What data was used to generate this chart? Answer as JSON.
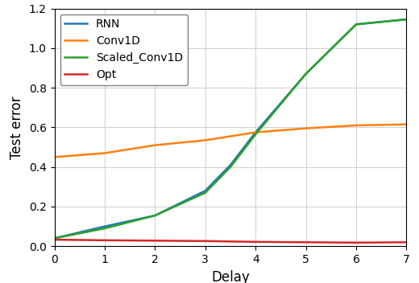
{
  "x": [
    0,
    1,
    2,
    3,
    3.5,
    4,
    5,
    6,
    7
  ],
  "RNN": [
    0.04,
    0.1,
    0.155,
    0.28,
    0.41,
    0.575,
    0.87,
    1.12,
    1.145
  ],
  "Conv1D": [
    0.45,
    0.47,
    0.51,
    0.535,
    0.555,
    0.575,
    0.595,
    0.61,
    0.615
  ],
  "Scaled_Conv1D": [
    0.04,
    0.09,
    0.155,
    0.27,
    0.4,
    0.565,
    0.87,
    1.12,
    1.145
  ],
  "Opt": [
    0.033,
    0.03,
    0.028,
    0.026,
    0.024,
    0.022,
    0.02,
    0.018,
    0.02
  ],
  "colors": {
    "RNN": "#1f77b4",
    "Conv1D": "#ff7f0e",
    "Scaled_Conv1D": "#2ca02c",
    "Opt": "#d62728"
  },
  "xlabel": "Delay",
  "ylabel": "Test error",
  "ylim": [
    0.0,
    1.2
  ],
  "xlim": [
    0,
    7
  ],
  "xticks": [
    0,
    1,
    2,
    3,
    4,
    5,
    6,
    7
  ],
  "yticks": [
    0.0,
    0.2,
    0.4,
    0.6,
    0.8,
    1.0,
    1.2
  ],
  "legend_labels": [
    "RNN",
    "Conv1D",
    "Scaled_Conv1D",
    "Opt"
  ],
  "figsize": [
    5.2,
    3.52
  ],
  "dpi": 100
}
